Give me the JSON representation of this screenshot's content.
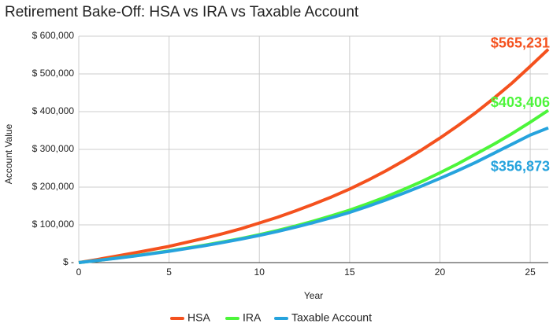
{
  "chart_data": {
    "type": "line",
    "title": "Retirement Bake-Off: HSA vs IRA vs Taxable Account",
    "x_label": "Year",
    "y_label": "Account Value",
    "x": [
      0,
      1,
      2,
      3,
      4,
      5,
      6,
      7,
      8,
      9,
      10,
      11,
      12,
      13,
      14,
      15,
      16,
      17,
      18,
      19,
      20,
      21,
      22,
      23,
      24,
      25,
      26
    ],
    "xlim": [
      0,
      26
    ],
    "xticks": [
      0,
      5,
      10,
      15,
      20,
      25
    ],
    "ylim": [
      0,
      600000
    ],
    "yticks": [
      {
        "value": 0,
        "label": "$ -"
      },
      {
        "value": 100000,
        "label": "$ 100,000"
      },
      {
        "value": 200000,
        "label": "$ 200,000"
      },
      {
        "value": 300000,
        "label": "$ 300,000"
      },
      {
        "value": 400000,
        "label": "$ 400,000"
      },
      {
        "value": 500000,
        "label": "$ 500,000"
      },
      {
        "value": 600000,
        "label": "$ 600,000"
      }
    ],
    "grid": true,
    "legend": "bottom",
    "series": [
      {
        "name": "HSA",
        "color": "#f4511e",
        "values": [
          0,
          8000,
          16500,
          25000,
          34000,
          43000,
          54000,
          65000,
          77000,
          90000,
          105000,
          120000,
          137000,
          155000,
          174000,
          195000,
          218000,
          243000,
          270000,
          299000,
          330000,
          363000,
          398000,
          436000,
          476000,
          520000,
          565231
        ],
        "value_labels": [
          null,
          null,
          null,
          null,
          null,
          null,
          null,
          null,
          null,
          null,
          null,
          null,
          null,
          null,
          null,
          null,
          null,
          null,
          null,
          null,
          null,
          null,
          null,
          null,
          null,
          null,
          "$565,231"
        ]
      },
      {
        "name": "IRA",
        "color": "#4cf53a",
        "values": [
          0,
          5500,
          11500,
          17500,
          24000,
          31000,
          38500,
          46500,
          55000,
          64000,
          74000,
          85000,
          97000,
          110000,
          124000,
          139000,
          156000,
          174000,
          194000,
          215000,
          238000,
          262000,
          288000,
          314000,
          342000,
          372000,
          403406
        ],
        "value_labels": [
          null,
          null,
          null,
          null,
          null,
          null,
          null,
          null,
          null,
          null,
          null,
          null,
          null,
          null,
          null,
          null,
          null,
          null,
          null,
          null,
          null,
          null,
          null,
          null,
          null,
          null,
          "$403,406"
        ]
      },
      {
        "name": "Taxable Account",
        "color": "#26a3dd",
        "values": [
          0,
          5500,
          11000,
          17000,
          23500,
          30000,
          37500,
          45000,
          53500,
          62500,
          72000,
          82500,
          94000,
          106000,
          119000,
          133000,
          149000,
          166000,
          184000,
          203000,
          223000,
          244000,
          266000,
          290000,
          314000,
          338000,
          356873
        ],
        "value_labels": [
          null,
          null,
          null,
          null,
          null,
          null,
          null,
          null,
          null,
          null,
          null,
          null,
          null,
          null,
          null,
          null,
          null,
          null,
          null,
          null,
          null,
          null,
          null,
          null,
          null,
          null,
          "$356,873"
        ]
      }
    ]
  }
}
